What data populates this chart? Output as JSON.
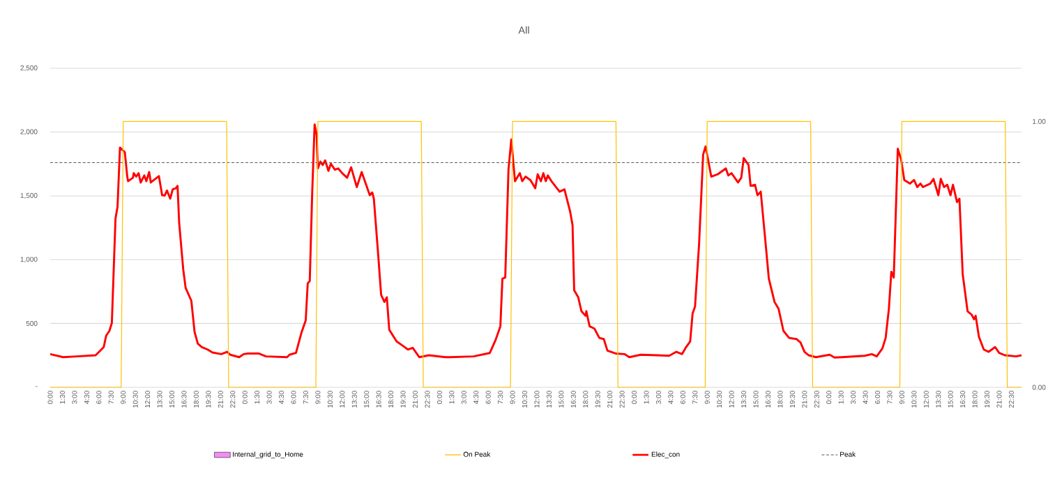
{
  "chart_data": {
    "type": "line",
    "title": "All",
    "xlim": [
      "--01-01T00:00",
      "--01-05T23:45"
    ],
    "xticks": [
      {
        "value": "--01-01T00:00",
        "label": "0:00"
      },
      {
        "value": "--01-01T01:30",
        "label": "1:30"
      },
      {
        "value": "--01-01T03:00",
        "label": "3:00"
      },
      {
        "value": "--01-01T04:30",
        "label": "4:30"
      },
      {
        "value": "--01-01T06:00",
        "label": "6:00"
      },
      {
        "value": "--01-01T07:30",
        "label": "7:30"
      },
      {
        "value": "--01-01T09:00",
        "label": "9:00"
      },
      {
        "value": "--01-01T10:30",
        "label": "10:30"
      },
      {
        "value": "--01-01T12:00",
        "label": "12:00"
      },
      {
        "value": "--01-01T13:30",
        "label": "13:30"
      },
      {
        "value": "--01-01T15:00",
        "label": "15:00"
      },
      {
        "value": "--01-01T16:30",
        "label": "16:30"
      },
      {
        "value": "--01-01T18:00",
        "label": "18:00"
      },
      {
        "value": "--01-01T19:30",
        "label": "19:30"
      },
      {
        "value": "--01-01T21:00",
        "label": "21:00"
      },
      {
        "value": "--01-01T22:30",
        "label": "22:30"
      },
      {
        "value": "--01-02T00:00",
        "label": "0:00"
      },
      {
        "value": "--01-02T01:30",
        "label": "1:30"
      },
      {
        "value": "--01-02T03:00",
        "label": "3:00"
      },
      {
        "value": "--01-02T04:30",
        "label": "4:30"
      },
      {
        "value": "--01-02T06:00",
        "label": "6:00"
      },
      {
        "value": "--01-02T07:30",
        "label": "7:30"
      },
      {
        "value": "--01-02T09:00",
        "label": "9:00"
      },
      {
        "value": "--01-02T10:30",
        "label": "10:30"
      },
      {
        "value": "--01-02T12:00",
        "label": "12:00"
      },
      {
        "value": "--01-02T13:30",
        "label": "13:30"
      },
      {
        "value": "--01-02T15:00",
        "label": "15:00"
      },
      {
        "value": "--01-02T16:30",
        "label": "16:30"
      },
      {
        "value": "--01-02T18:00",
        "label": "18:00"
      },
      {
        "value": "--01-02T19:30",
        "label": "19:30"
      },
      {
        "value": "--01-02T21:00",
        "label": "21:00"
      },
      {
        "value": "--01-02T22:30",
        "label": "22:30"
      },
      {
        "value": "--01-03T00:00",
        "label": "0:00"
      },
      {
        "value": "--01-03T01:30",
        "label": "1:30"
      },
      {
        "value": "--01-03T03:00",
        "label": "3:00"
      },
      {
        "value": "--01-03T04:30",
        "label": "4:30"
      },
      {
        "value": "--01-03T06:00",
        "label": "6:00"
      },
      {
        "value": "--01-03T07:30",
        "label": "7:30"
      },
      {
        "value": "--01-03T09:00",
        "label": "9:00"
      },
      {
        "value": "--01-03T10:30",
        "label": "10:30"
      },
      {
        "value": "--01-03T12:00",
        "label": "12:00"
      },
      {
        "value": "--01-03T13:30",
        "label": "13:30"
      },
      {
        "value": "--01-03T15:00",
        "label": "15:00"
      },
      {
        "value": "--01-03T16:30",
        "label": "16:30"
      },
      {
        "value": "--01-03T18:00",
        "label": "18:00"
      },
      {
        "value": "--01-03T19:30",
        "label": "19:30"
      },
      {
        "value": "--01-03T21:00",
        "label": "21:00"
      },
      {
        "value": "--01-03T22:30",
        "label": "22:30"
      },
      {
        "value": "--01-04T00:00",
        "label": "0:00"
      },
      {
        "value": "--01-04T01:30",
        "label": "1:30"
      },
      {
        "value": "--01-04T03:00",
        "label": "3:00"
      },
      {
        "value": "--01-04T04:30",
        "label": "4:30"
      },
      {
        "value": "--01-04T06:00",
        "label": "6:00"
      },
      {
        "value": "--01-04T07:30",
        "label": "7:30"
      },
      {
        "value": "--01-04T09:00",
        "label": "9:00"
      },
      {
        "value": "--01-04T10:30",
        "label": "10:30"
      },
      {
        "value": "--01-04T12:00",
        "label": "12:00"
      },
      {
        "value": "--01-04T13:30",
        "label": "13:30"
      },
      {
        "value": "--01-04T15:00",
        "label": "15:00"
      },
      {
        "value": "--01-04T16:30",
        "label": "16:30"
      },
      {
        "value": "--01-04T18:00",
        "label": "18:00"
      },
      {
        "value": "--01-04T19:30",
        "label": "19:30"
      },
      {
        "value": "--01-04T21:00",
        "label": "21:00"
      },
      {
        "value": "--01-04T22:30",
        "label": "22:30"
      },
      {
        "value": "--01-05T00:00",
        "label": "0:00"
      },
      {
        "value": "--01-05T01:30",
        "label": "1:30"
      },
      {
        "value": "--01-05T03:00",
        "label": "3:00"
      },
      {
        "value": "--01-05T04:30",
        "label": "4:30"
      },
      {
        "value": "--01-05T06:00",
        "label": "6:00"
      },
      {
        "value": "--01-05T07:30",
        "label": "7:30"
      },
      {
        "value": "--01-05T09:00",
        "label": "9:00"
      },
      {
        "value": "--01-05T10:30",
        "label": "10:30"
      },
      {
        "value": "--01-05T12:00",
        "label": "12:00"
      },
      {
        "value": "--01-05T13:30",
        "label": "13:30"
      },
      {
        "value": "--01-05T15:00",
        "label": "15:00"
      },
      {
        "value": "--01-05T16:30",
        "label": "16:30"
      },
      {
        "value": "--01-05T18:00",
        "label": "18:00"
      },
      {
        "value": "--01-05T19:30",
        "label": "19:30"
      },
      {
        "value": "--01-05T21:00",
        "label": "21:00"
      },
      {
        "value": "--01-05T22:30",
        "label": "22:30"
      }
    ],
    "ylim": [
      0,
      2500
    ],
    "yticks": [
      {
        "value": 0,
        "label": "-"
      },
      500,
      {
        "value": 1000,
        "label": "1,000"
      },
      {
        "value": 1500,
        "label": "1,500"
      },
      {
        "value": 2000,
        "label": "2,000"
      },
      {
        "value": 2500,
        "label": "2,500"
      }
    ],
    "y2lim": [
      0,
      1.2
    ],
    "y2ticks": [
      {
        "value": 0,
        "label": "0.00"
      },
      {
        "value": 1,
        "label": "1.00"
      }
    ],
    "grid": "y",
    "legend": "bottom",
    "marker": "none",
    "series": [
      {
        "name": "Internal_grid_to_Home",
        "type": "area",
        "color": "#f28ef2"
      },
      {
        "name": "On Peak",
        "axis": "y2",
        "color": "#ffc000",
        "x": [
          "--01-01T00:00",
          "--01-01T08:45",
          "--01-01T09:00",
          "--01-01T21:45",
          "--01-01T22:00",
          "--01-02T08:45",
          "--01-02T09:00",
          "--01-02T21:45",
          "--01-02T22:00",
          "--01-03T08:45",
          "--01-03T09:00",
          "--01-03T21:45",
          "--01-03T22:00",
          "--01-04T08:45",
          "--01-04T09:00",
          "--01-04T21:45",
          "--01-04T22:00",
          "--01-05T08:45",
          "--01-05T09:00",
          "--01-05T21:45",
          "--01-05T22:00",
          "--01-05T23:45"
        ],
        "values": [
          0,
          0,
          1,
          1,
          0,
          0,
          1,
          1,
          0,
          0,
          1,
          1,
          0,
          0,
          1,
          1,
          0,
          0,
          1,
          1,
          0,
          0
        ]
      },
      {
        "name": "Elec_con",
        "color": "#ff0000",
        "x": [
          "--01-01T00:00",
          "--01-01T01:36",
          "--01-01T03:18",
          "--01-01T05:36",
          "--01-01T06:36",
          "--01-01T06:54",
          "--01-01T07:18",
          "--01-01T07:36",
          "--01-01T08:03",
          "--01-01T08:18",
          "--01-01T08:36",
          "--01-01T09:12",
          "--01-01T09:30",
          "--01-01T09:36",
          "--01-01T10:12",
          "--01-01T10:18",
          "--01-01T10:36",
          "--01-01T10:54",
          "--01-01T11:09",
          "--01-01T11:36",
          "--01-01T11:51",
          "--01-01T12:12",
          "--01-01T12:24",
          "--01-01T13:24",
          "--01-01T13:48",
          "--01-01T14:06",
          "--01-01T14:24",
          "--01-01T14:48",
          "--01-01T15:06",
          "--01-01T15:30",
          "--01-01T15:42",
          "--01-01T15:54",
          "--01-01T16:24",
          "--01-01T16:42",
          "--01-01T17:24",
          "--01-01T17:48",
          "--01-01T18:12",
          "--01-01T18:42",
          "--01-01T19:24",
          "--01-01T20:00",
          "--01-01T21:06",
          "--01-01T21:48",
          "--01-01T22:12",
          "--01-01T23:18",
          "--01-01T23:51",
          "--01-02T00:24",
          "--01-02T01:42",
          "--01-02T02:36",
          "--01-02T05:12",
          "--01-02T05:30",
          "--01-02T06:18",
          "--01-02T07:00",
          "--01-02T07:30",
          "--01-02T07:45",
          "--01-02T08:00",
          "--01-02T08:18",
          "--01-02T08:36",
          "--01-02T08:51",
          "--01-02T09:00",
          "--01-02T09:18",
          "--01-02T09:36",
          "--01-02T09:54",
          "--01-02T10:18",
          "--01-02T10:36",
          "--01-02T11:06",
          "--01-02T11:30",
          "--01-02T12:00",
          "--01-02T12:36",
          "--01-02T13:06",
          "--01-02T13:48",
          "--01-02T14:24",
          "--01-02T15:24",
          "--01-02T15:42",
          "--01-02T15:54",
          "--01-02T16:24",
          "--01-02T16:48",
          "--01-02T17:12",
          "--01-02T17:30",
          "--01-02T17:48",
          "--01-02T18:42",
          "--01-02T19:30",
          "--01-02T20:06",
          "--01-02T20:42",
          "--01-02T21:30",
          "--01-02T22:42",
          "--01-03T00:42",
          "--01-03T01:18",
          "--01-03T04:12",
          "--01-03T06:12",
          "--01-03T06:54",
          "--01-03T07:30",
          "--01-03T07:45",
          "--01-03T08:06",
          "--01-03T08:30",
          "--01-03T08:51",
          "--01-03T09:18",
          "--01-03T09:54",
          "--01-03T10:12",
          "--01-03T10:36",
          "--01-03T11:12",
          "--01-03T11:48",
          "--01-03T12:06",
          "--01-03T12:30",
          "--01-03T12:48",
          "--01-03T13:06",
          "--01-03T13:21",
          "--01-03T13:48",
          "--01-03T14:48",
          "--01-03T15:24",
          "--01-03T16:06",
          "--01-03T16:24",
          "--01-03T16:36",
          "--01-03T17:06",
          "--01-03T17:30",
          "--01-03T18:00",
          "--01-03T18:06",
          "--01-03T18:30",
          "--01-03T19:06",
          "--01-03T19:42",
          "--01-03T20:15",
          "--01-03T20:42",
          "--01-03T21:42",
          "--01-03T22:48",
          "--01-03T23:24",
          "--01-04T00:48",
          "--01-04T02:51",
          "--01-04T04:18",
          "--01-04T05:12",
          "--01-04T05:54",
          "--01-04T06:24",
          "--01-04T06:54",
          "--01-04T07:12",
          "--01-04T07:30",
          "--01-04T08:00",
          "--01-04T08:30",
          "--01-04T08:48",
          "--01-04T09:30",
          "--01-04T10:18",
          "--01-04T11:18",
          "--01-04T11:36",
          "--01-04T12:00",
          "--01-04T12:48",
          "--01-04T13:12",
          "--01-04T13:30",
          "--01-04T14:06",
          "--01-04T14:21",
          "--01-04T14:54",
          "--01-04T15:12",
          "--01-04T15:36",
          "--01-04T16:06",
          "--01-04T16:36",
          "--01-04T17:18",
          "--01-04T17:48",
          "--01-04T18:24",
          "--01-04T19:06",
          "--01-04T20:00",
          "--01-04T20:30",
          "--01-04T21:00",
          "--01-04T21:30",
          "--01-04T22:24",
          "--01-05T00:06",
          "--01-05T00:42",
          "--01-05T01:36",
          "--01-05T04:24",
          "--01-05T05:18",
          "--01-05T05:54",
          "--01-05T06:36",
          "--01-05T07:00",
          "--01-05T07:24",
          "--01-05T07:42",
          "--01-05T08:00",
          "--01-05T08:30",
          "--01-05T08:54",
          "--01-05T09:18",
          "--01-05T10:00",
          "--01-05T10:30",
          "--01-05T10:54",
          "--01-05T11:18",
          "--01-05T11:36",
          "--01-05T12:30",
          "--01-05T12:54",
          "--01-05T13:30",
          "--01-05T13:48",
          "--01-05T14:12",
          "--01-05T14:36",
          "--01-05T15:00",
          "--01-05T15:18",
          "--01-05T15:48",
          "--01-05T16:06",
          "--01-05T16:30",
          "--01-05T17:06",
          "--01-05T17:36",
          "--01-05T17:54",
          "--01-05T18:06",
          "--01-05T18:30",
          "--01-05T19:06",
          "--01-05T19:42",
          "--01-05T20:30",
          "--01-05T21:00",
          "--01-05T21:42",
          "--01-05T23:06",
          "--01-05T23:45"
        ],
        "values": [
          260,
          236,
          242,
          251,
          315,
          405,
          442,
          505,
          1324,
          1415,
          1878,
          1842,
          1651,
          1615,
          1642,
          1678,
          1651,
          1678,
          1605,
          1660,
          1615,
          1687,
          1605,
          1655,
          1505,
          1502,
          1542,
          1478,
          1551,
          1560,
          1578,
          1287,
          924,
          778,
          678,
          433,
          342,
          315,
          296,
          273,
          260,
          278,
          255,
          236,
          260,
          265,
          265,
          242,
          236,
          255,
          269,
          433,
          524,
          815,
          833,
          1524,
          2060,
          1978,
          1715,
          1769,
          1742,
          1778,
          1696,
          1751,
          1705,
          1715,
          1678,
          1642,
          1724,
          1569,
          1687,
          1505,
          1527,
          1478,
          1069,
          724,
          669,
          705,
          451,
          360,
          324,
          296,
          309,
          236,
          251,
          236,
          236,
          242,
          269,
          369,
          478,
          851,
          860,
          1705,
          1942,
          1615,
          1678,
          1615,
          1651,
          1624,
          1560,
          1669,
          1615,
          1678,
          1615,
          1660,
          1615,
          1533,
          1551,
          1378,
          1269,
          760,
          705,
          596,
          560,
          596,
          478,
          460,
          387,
          378,
          287,
          265,
          260,
          236,
          255,
          251,
          247,
          278,
          260,
          315,
          360,
          578,
          633,
          1124,
          1824,
          1887,
          1651,
          1669,
          1715,
          1660,
          1678,
          1605,
          1642,
          1796,
          1742,
          1578,
          1587,
          1505,
          1533,
          1196,
          851,
          669,
          615,
          442,
          387,
          378,
          351,
          278,
          251,
          236,
          255,
          233,
          236,
          247,
          260,
          242,
          305,
          387,
          615,
          905,
          860,
          1869,
          1787,
          1624,
          1596,
          1624,
          1569,
          1596,
          1569,
          1596,
          1633,
          1505,
          1633,
          1569,
          1587,
          1505,
          1587,
          1451,
          1478,
          887,
          596,
          569,
          533,
          560,
          396,
          296,
          278,
          315,
          269,
          251,
          242,
          251
        ]
      }
    ],
    "ref_lines": [
      {
        "axis": "y",
        "value": 1760,
        "label": "Peak",
        "color": "#595959",
        "line_style": "dashed"
      }
    ]
  }
}
